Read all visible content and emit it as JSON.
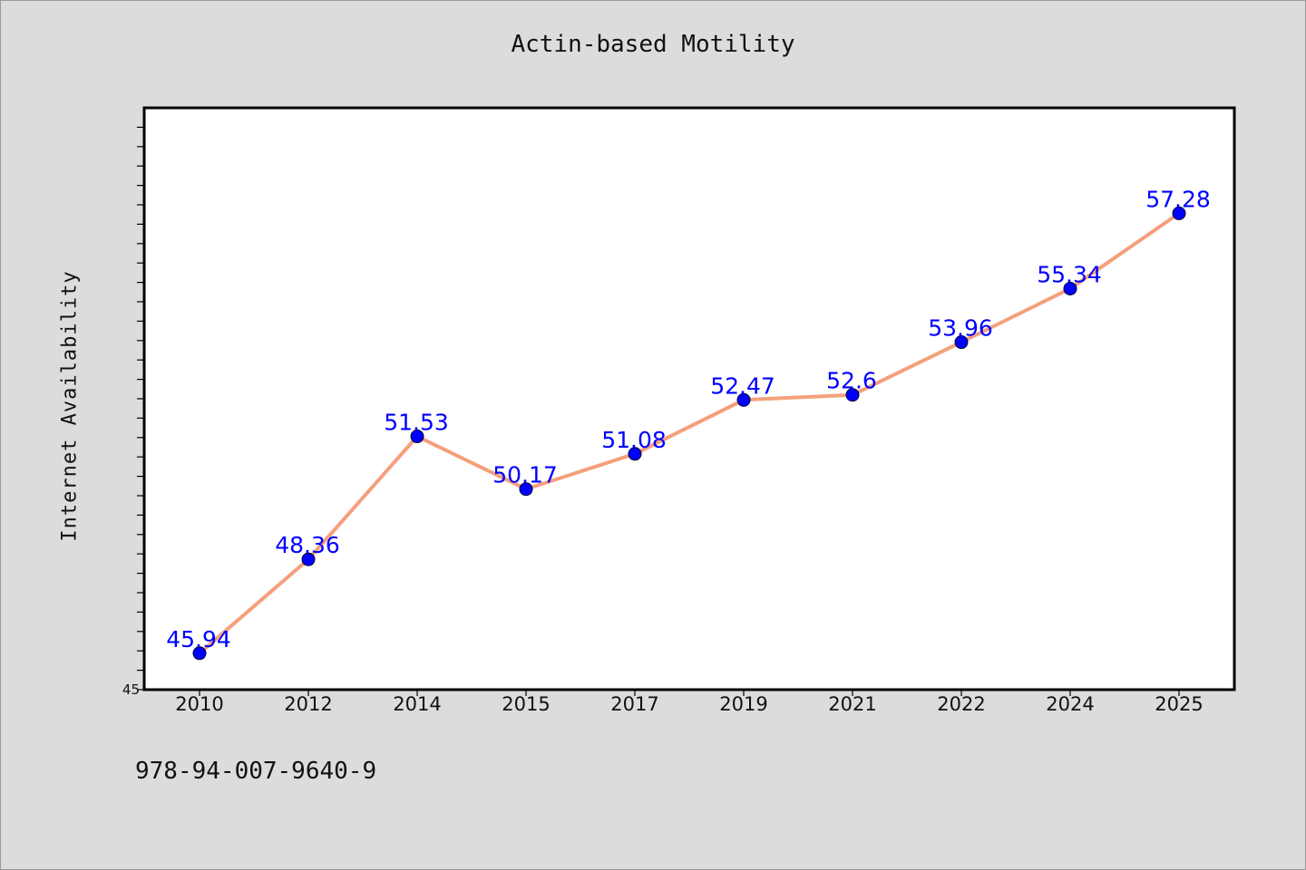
{
  "chart_data": {
    "type": "line",
    "title": "Actin-based Motility",
    "xlabel": "",
    "ylabel": "Internet Availability",
    "categories": [
      "2010",
      "2012",
      "2014",
      "2015",
      "2017",
      "2019",
      "2021",
      "2022",
      "2024",
      "2025"
    ],
    "series": [
      {
        "values": [
          45.94,
          48.36,
          51.53,
          50.17,
          51.08,
          52.47,
          52.6,
          53.96,
          55.34,
          57.28
        ],
        "data_labels": [
          "45.94",
          "48.36",
          "51.53",
          "50.17",
          "51.08",
          "52.47",
          "52.6",
          "53.96",
          "55.34",
          "57.28"
        ]
      }
    ],
    "ylim": [
      45,
      60
    ],
    "yticks_labeled": [
      "45"
    ],
    "grid": false,
    "legend": "none",
    "colors": {
      "line": "#f4a07c",
      "marker": "#0000ff",
      "data_label": "#0000ff",
      "plot_background": "#ffffff",
      "figure_background": "#dcdcdc"
    }
  },
  "footnote": "978-94-007-9640-9"
}
